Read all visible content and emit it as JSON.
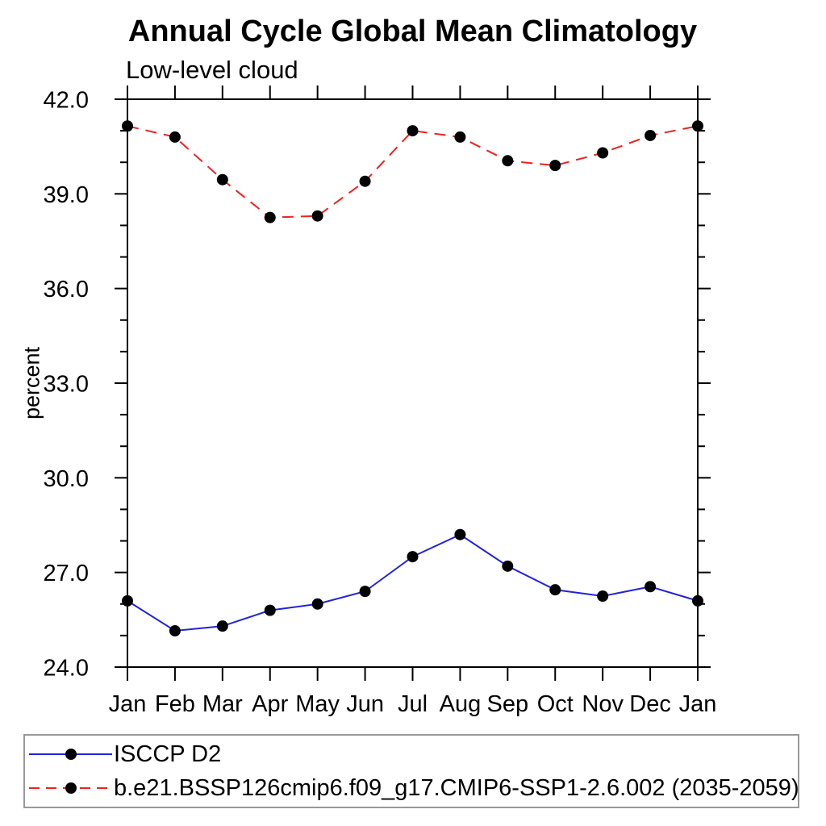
{
  "chart_data": {
    "type": "line",
    "title": "Annual Cycle Global Mean Climatology",
    "subtitle": "Low-level cloud",
    "ylabel": "percent",
    "xlabel": "",
    "x_tick_labels": [
      "Jan",
      "Feb",
      "Mar",
      "Apr",
      "May",
      "Jun",
      "Jul",
      "Aug",
      "Sep",
      "Oct",
      "Nov",
      "Dec",
      "Jan"
    ],
    "ylim": [
      24.0,
      42.0
    ],
    "y_major_ticks": [
      {
        "value": 24.0,
        "label": "24.0"
      },
      {
        "value": 27.0,
        "label": "27.0"
      },
      {
        "value": 30.0,
        "label": "30.0"
      },
      {
        "value": 33.0,
        "label": "33.0"
      },
      {
        "value": 36.0,
        "label": "36.0"
      },
      {
        "value": 39.0,
        "label": "39.0"
      },
      {
        "value": 42.0,
        "label": "42.0"
      }
    ],
    "y_minor_tick_step": 1.0,
    "grid": false,
    "legend_position": "bottom-left-box",
    "marker": {
      "shape": "filled-circle",
      "color": "#000000"
    },
    "series": [
      {
        "name": "ISCCP D2",
        "color": "#2222dd",
        "line_style": "solid",
        "values": [
          26.1,
          25.15,
          25.3,
          25.8,
          26.0,
          26.4,
          27.5,
          28.2,
          27.2,
          26.45,
          26.25,
          26.55,
          26.1
        ]
      },
      {
        "name": "b.e21.BSSP126cmip6.f09_g17.CMIP6-SSP1-2.6.002 (2035-2059)",
        "color": "#ee2222",
        "line_style": "dashed",
        "values": [
          41.15,
          40.8,
          39.45,
          38.25,
          38.3,
          39.4,
          41.0,
          40.8,
          40.05,
          39.9,
          40.3,
          40.85,
          41.15
        ]
      }
    ]
  }
}
